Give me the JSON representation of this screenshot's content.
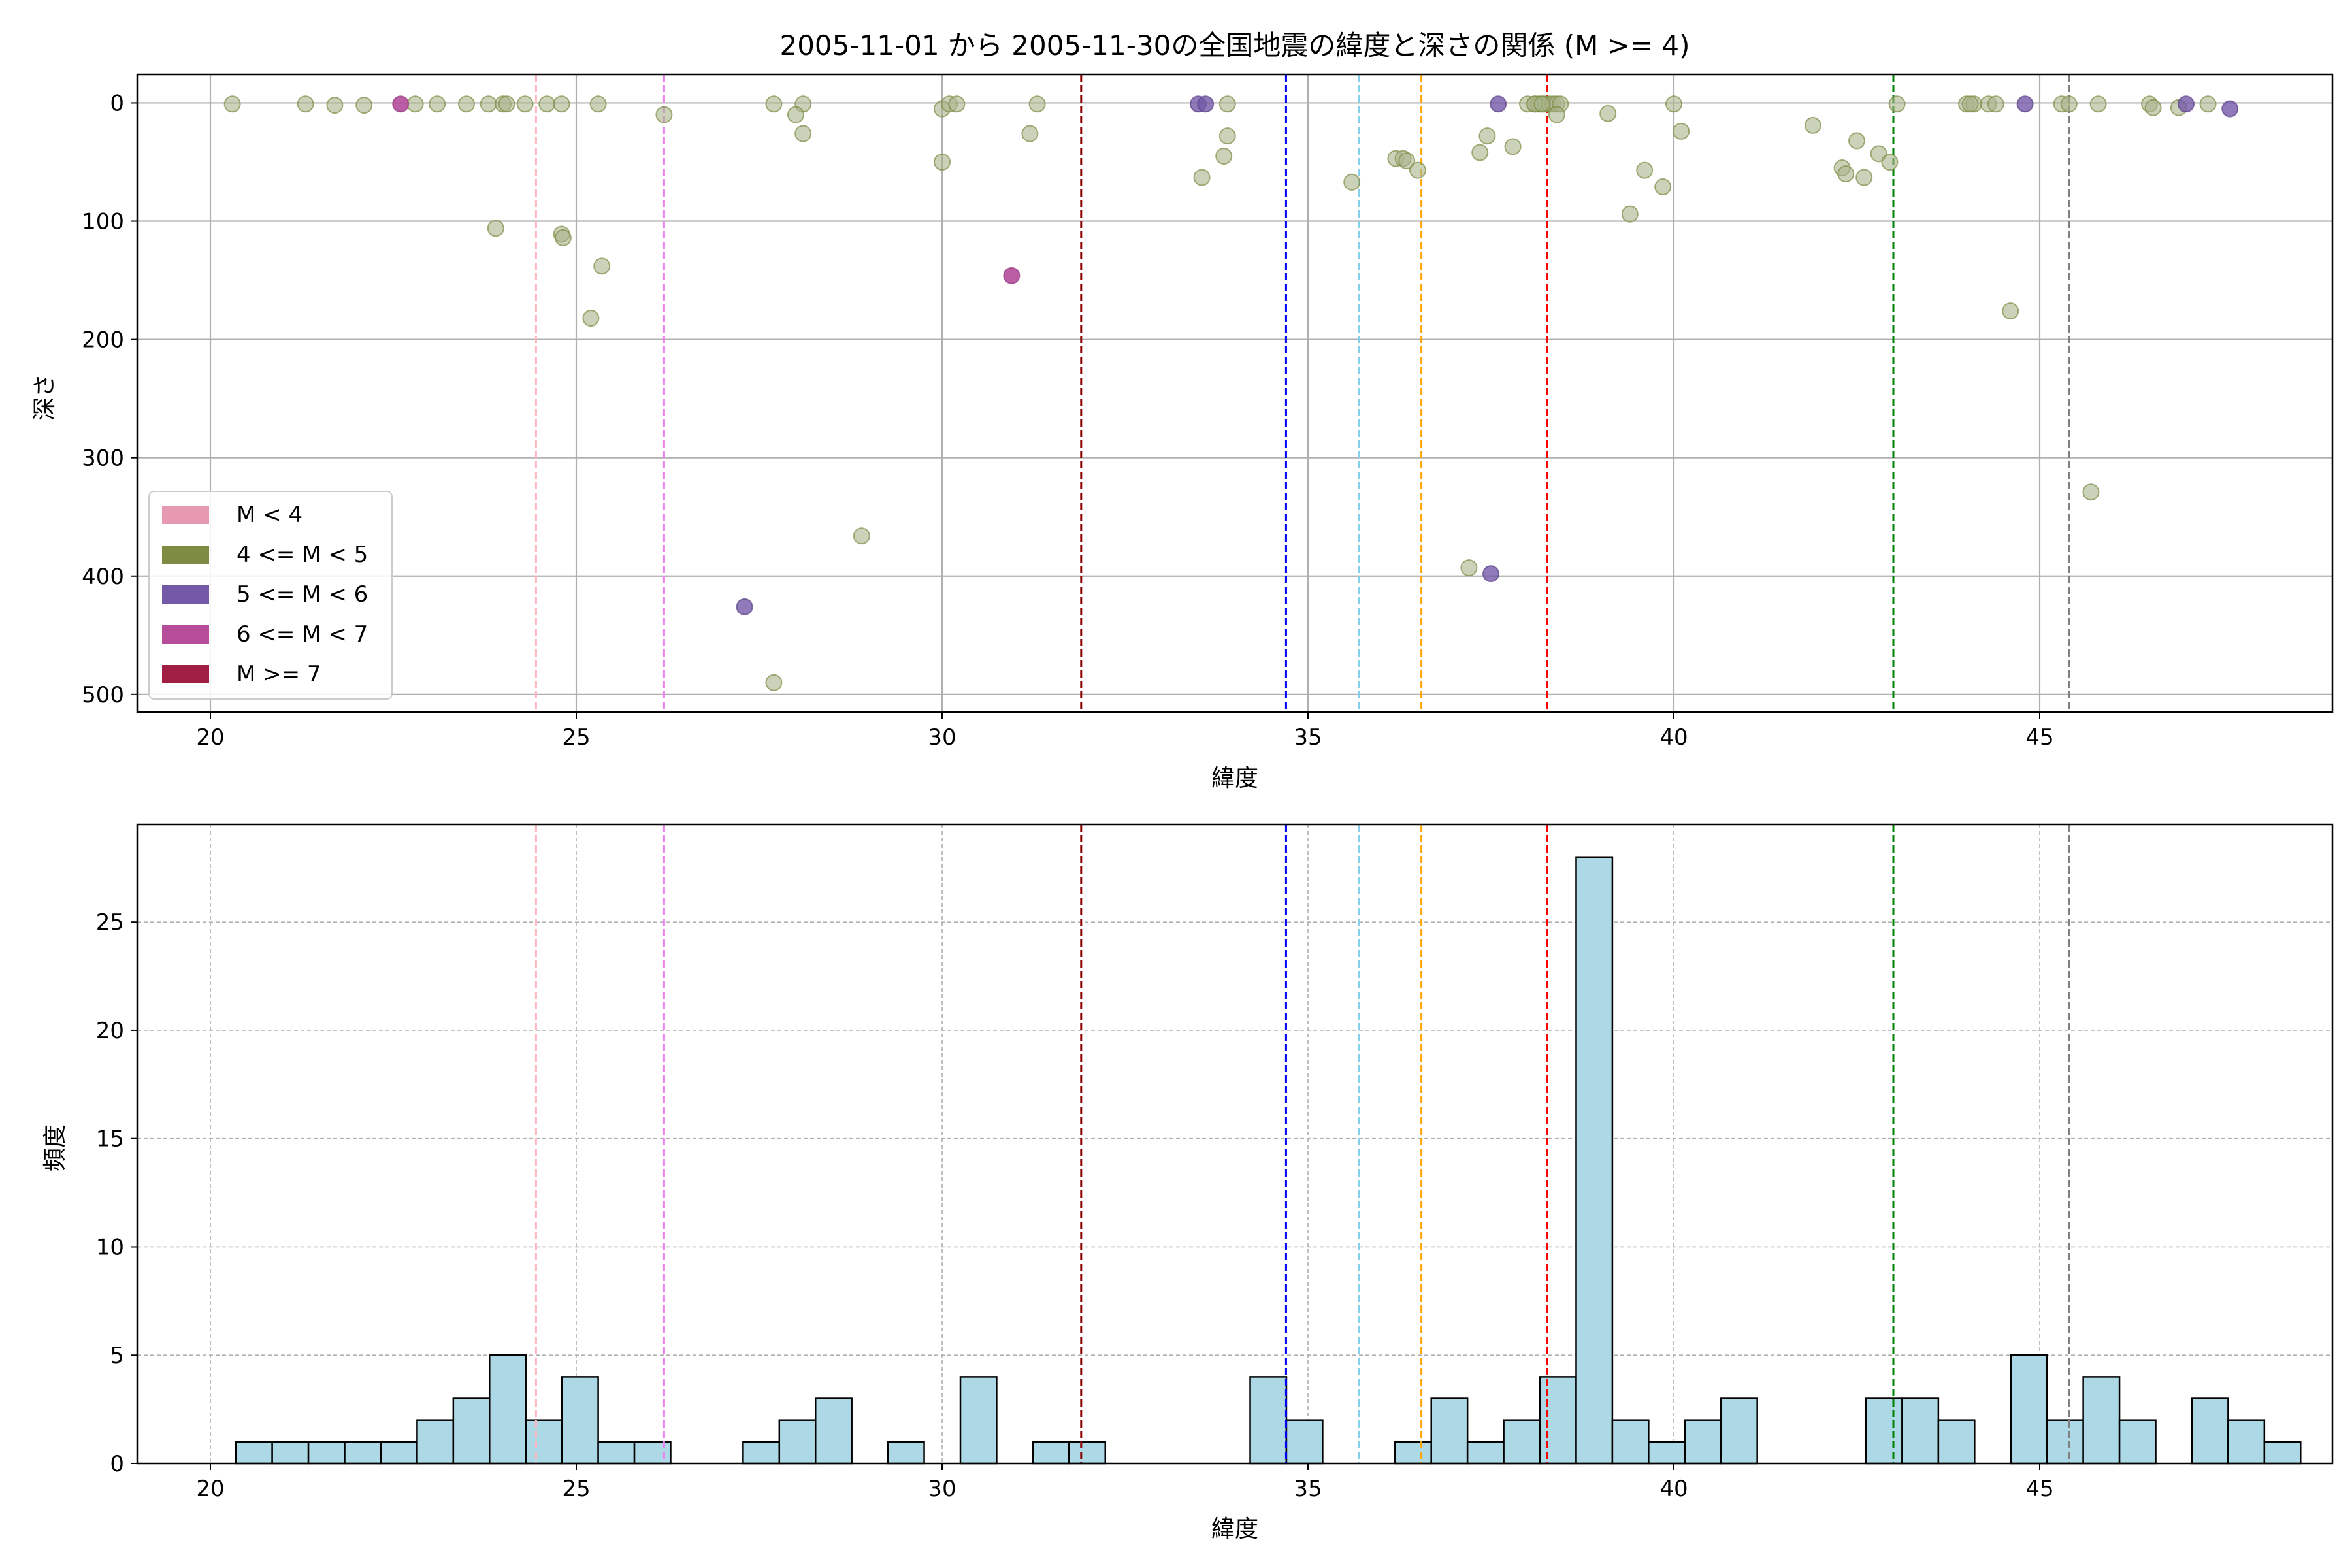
{
  "figure": {
    "title": "2005-11-01 から 2005-11-30の全国地震の緯度と深さの関係 (M >= 4)"
  },
  "colors": {
    "m_lt4": "#e899b2",
    "m_4_5": "#7e8c43",
    "m_5_6": "#7459a8",
    "m_6_7": "#b54d9b",
    "m_ge7": "#a11e45",
    "hist_fill": "#add8e6",
    "ref_lines": [
      "#ffb6c1",
      "#ee82ee",
      "#8b0000",
      "#0000ff",
      "#87ceeb",
      "#ffa500",
      "#ff0000",
      "#008000",
      "#808080"
    ]
  },
  "chart_data": [
    {
      "type": "scatter",
      "xlabel": "緯度",
      "ylabel": "深さ",
      "xlim": [
        19,
        49
      ],
      "ylim": [
        515,
        -24
      ],
      "y_inverted": true,
      "xticks": [
        20,
        25,
        30,
        35,
        40,
        45
      ],
      "yticks": [
        0,
        100,
        200,
        300,
        400,
        500
      ],
      "grid": true,
      "legend_position": "lower-left",
      "legend": [
        {
          "label": "M < 4",
          "color": "#e899b2"
        },
        {
          "label": "4 <= M < 5",
          "color": "#7e8c43"
        },
        {
          "label": "5 <= M < 6",
          "color": "#7459a8"
        },
        {
          "label": "6 <= M < 7",
          "color": "#b54d9b"
        },
        {
          "label": "M >= 7",
          "color": "#a11e45"
        }
      ],
      "reference_lines_x": [
        24.45,
        26.2,
        31.9,
        34.7,
        35.7,
        36.55,
        38.27,
        43.0,
        45.4
      ],
      "series": [
        {
          "name": "4 <= M < 5",
          "points": [
            [
              20.3,
              1
            ],
            [
              21.3,
              1
            ],
            [
              21.7,
              2
            ],
            [
              22.1,
              2
            ],
            [
              22.8,
              1
            ],
            [
              23.1,
              1
            ],
            [
              23.5,
              1
            ],
            [
              23.8,
              1
            ],
            [
              24.0,
              1
            ],
            [
              24.05,
              1
            ],
            [
              24.3,
              1
            ],
            [
              24.6,
              1
            ],
            [
              24.8,
              1
            ],
            [
              25.3,
              1
            ],
            [
              26.2,
              10
            ],
            [
              23.9,
              106
            ],
            [
              24.8,
              111
            ],
            [
              24.82,
              114
            ],
            [
              25.35,
              138
            ],
            [
              25.2,
              182
            ],
            [
              27.7,
              1
            ],
            [
              28.1,
              1
            ],
            [
              28.0,
              10
            ],
            [
              28.1,
              26
            ],
            [
              28.9,
              366
            ],
            [
              27.7,
              490
            ],
            [
              30.0,
              5
            ],
            [
              30.1,
              1
            ],
            [
              30.2,
              1
            ],
            [
              31.3,
              1
            ],
            [
              31.2,
              26
            ],
            [
              30.0,
              50
            ],
            [
              33.9,
              1
            ],
            [
              33.9,
              28
            ],
            [
              33.85,
              45
            ],
            [
              33.55,
              63
            ],
            [
              35.6,
              67
            ],
            [
              36.2,
              47
            ],
            [
              36.3,
              47
            ],
            [
              36.35,
              49
            ],
            [
              36.5,
              57
            ],
            [
              37.35,
              42
            ],
            [
              37.45,
              28
            ],
            [
              37.8,
              37
            ],
            [
              37.2,
              393
            ],
            [
              38.0,
              1
            ],
            [
              38.1,
              1
            ],
            [
              38.15,
              1
            ],
            [
              38.2,
              1
            ],
            [
              38.25,
              1
            ],
            [
              38.3,
              1
            ],
            [
              38.35,
              1
            ],
            [
              38.4,
              1
            ],
            [
              38.45,
              1
            ],
            [
              38.1,
              1
            ],
            [
              38.2,
              1
            ],
            [
              38.4,
              10
            ],
            [
              39.1,
              9
            ],
            [
              40.0,
              1
            ],
            [
              40.1,
              24
            ],
            [
              39.6,
              57
            ],
            [
              39.85,
              71
            ],
            [
              39.4,
              94
            ],
            [
              41.9,
              19
            ],
            [
              42.3,
              55
            ],
            [
              42.35,
              60
            ],
            [
              42.5,
              32
            ],
            [
              42.6,
              63
            ],
            [
              42.8,
              43
            ],
            [
              42.95,
              50
            ],
            [
              43.05,
              1
            ],
            [
              44.0,
              1
            ],
            [
              44.1,
              1
            ],
            [
              44.3,
              1
            ],
            [
              44.05,
              1
            ],
            [
              44.4,
              1
            ],
            [
              45.3,
              1
            ],
            [
              45.4,
              1
            ],
            [
              45.8,
              1
            ],
            [
              46.5,
              1
            ],
            [
              46.55,
              4
            ],
            [
              47.3,
              1
            ],
            [
              46.9,
              4
            ],
            [
              44.6,
              176
            ],
            [
              45.7,
              329
            ]
          ]
        },
        {
          "name": "5 <= M < 6",
          "points": [
            [
              33.5,
              1
            ],
            [
              33.6,
              1
            ],
            [
              37.6,
              1
            ],
            [
              44.8,
              1
            ],
            [
              47.0,
              1
            ],
            [
              47.6,
              5
            ],
            [
              27.3,
              426
            ],
            [
              37.5,
              398
            ]
          ]
        },
        {
          "name": "6 <= M < 7",
          "points": [
            [
              22.6,
              1
            ],
            [
              30.95,
              146
            ]
          ]
        }
      ]
    },
    {
      "type": "bar",
      "xlabel": "緯度",
      "ylabel": "頻度",
      "xlim": [
        19,
        49
      ],
      "ylim": [
        0,
        29.5
      ],
      "xticks": [
        20,
        25,
        30,
        35,
        40,
        45
      ],
      "yticks": [
        0,
        5,
        10,
        15,
        20,
        25
      ],
      "grid": true,
      "bin_start": 20.35,
      "bin_width": 0.495,
      "values": [
        1,
        1,
        1,
        1,
        1,
        2,
        3,
        5,
        2,
        4,
        1,
        1,
        0,
        0,
        1,
        2,
        3,
        0,
        1,
        0,
        4,
        0,
        1,
        1,
        0,
        0,
        0,
        0,
        4,
        2,
        0,
        0,
        1,
        3,
        1,
        2,
        4,
        28,
        2,
        1,
        2,
        3,
        0,
        0,
        0,
        3,
        3,
        2,
        0,
        5,
        2,
        4,
        2,
        0,
        3,
        2,
        1
      ],
      "reference_lines_x": [
        24.45,
        26.2,
        31.9,
        34.7,
        35.7,
        36.55,
        38.27,
        43.0,
        45.4
      ]
    }
  ]
}
